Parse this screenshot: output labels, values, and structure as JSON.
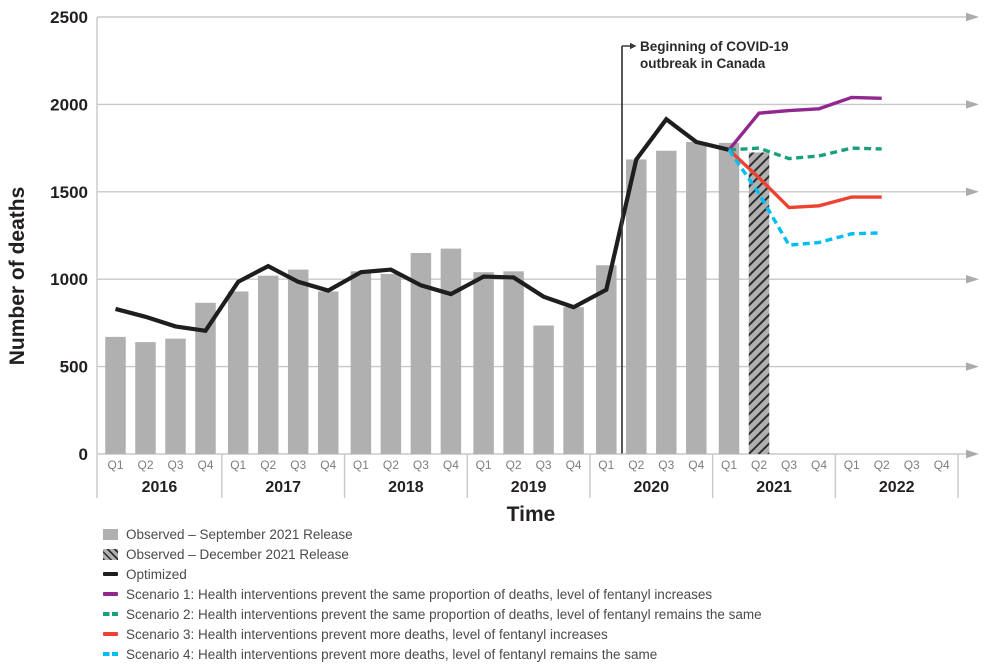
{
  "chart_data": {
    "type": "bar+line",
    "title": "",
    "xlabel": "Time",
    "ylabel": "Number of deaths",
    "ylim": [
      0,
      2500
    ],
    "y_ticks": [
      0,
      500,
      1000,
      1500,
      2000,
      2500
    ],
    "years": [
      "2016",
      "2017",
      "2018",
      "2019",
      "2020",
      "2021",
      "2022"
    ],
    "quarters": [
      "Q1",
      "Q2",
      "Q3",
      "Q4"
    ],
    "grid": "on",
    "legend_position": "bottom-left",
    "annotation": {
      "line1": "Beginning of COVID-19",
      "line2": "outbreak in Canada",
      "at": "between 2020 Q1 and 2020 Q2"
    },
    "series": [
      {
        "id": "observed-sep-2021",
        "name": "Observed – September 2021 Release",
        "kind": "bar",
        "hatched": false,
        "color": "#b0b0b0",
        "start_index": 0,
        "values": [
          670,
          640,
          660,
          865,
          930,
          1020,
          1055,
          930,
          1045,
          1030,
          1150,
          1175,
          1040,
          1045,
          735,
          840,
          1080,
          1685,
          1735,
          1785,
          1780
        ]
      },
      {
        "id": "observed-dec-2021",
        "name": "Observed – December 2021 Release",
        "kind": "bar",
        "hatched": true,
        "color": "#b0b0b0",
        "hatch_color": "#2e2e2e",
        "start_index": 21,
        "values": [
          1725
        ]
      },
      {
        "id": "optimized",
        "name": "Optimized",
        "kind": "line",
        "dash": "solid",
        "color": "#1e1e1e",
        "width": 4.2,
        "start_index": 0,
        "values": [
          830,
          785,
          730,
          705,
          985,
          1075,
          985,
          935,
          1040,
          1055,
          965,
          915,
          1015,
          1010,
          900,
          840,
          940,
          1685,
          1915,
          1785,
          1740
        ]
      },
      {
        "id": "scenario-1",
        "name": "Scenario 1: Health interventions prevent the same proportion of deaths, level of fentanyl increases",
        "kind": "line",
        "dash": "solid",
        "color": "#92278f",
        "width": 3.4,
        "start_index": 20,
        "values": [
          1740,
          1950,
          1965,
          1975,
          2040,
          2035
        ]
      },
      {
        "id": "scenario-2",
        "name": "Scenario 2: Health interventions prevent the same proportion of deaths, level of fentanyl remains the same",
        "kind": "line",
        "dash": "dashed",
        "color": "#1ba07d",
        "width": 3.4,
        "start_index": 20,
        "values": [
          1740,
          1750,
          1690,
          1705,
          1750,
          1745
        ]
      },
      {
        "id": "scenario-3",
        "name": "Scenario 3: Health interventions prevent more deaths, level of fentanyl increases",
        "kind": "line",
        "dash": "solid",
        "color": "#ee4130",
        "width": 3.4,
        "start_index": 20,
        "values": [
          1740,
          1580,
          1410,
          1420,
          1470,
          1470
        ]
      },
      {
        "id": "scenario-4",
        "name": "Scenario 4: Health interventions prevent more deaths, level of fentanyl remains the same",
        "kind": "line",
        "dash": "dashed",
        "color": "#00bdf2",
        "width": 3.4,
        "start_index": 20,
        "values": [
          1740,
          1490,
          1195,
          1210,
          1260,
          1265
        ]
      }
    ],
    "colors": {
      "gridline": "#c8c8c8",
      "grid_arrow": "#ababab",
      "quarter_label": "#7d7d7d",
      "year_label": "#231f20",
      "annotation_line": "#3a3a3a"
    }
  },
  "legend": {
    "items": [
      {
        "id": "observed-sep-2021",
        "swatch": "bar",
        "color": "#b0b0b0",
        "label": "Observed – September 2021 Release"
      },
      {
        "id": "observed-dec-2021",
        "swatch": "bar-hatched",
        "color": "#b0b0b0",
        "label": "Observed – December 2021 Release"
      },
      {
        "id": "optimized",
        "swatch": "line",
        "color": "#1e1e1e",
        "label": "Optimized"
      },
      {
        "id": "scenario-1",
        "swatch": "line",
        "color": "#92278f",
        "label": "Scenario 1: Health interventions prevent the same proportion of deaths, level of fentanyl increases"
      },
      {
        "id": "scenario-2",
        "swatch": "line-dashed",
        "color": "#1ba07d",
        "label": "Scenario 2: Health interventions prevent the same proportion of deaths, level of fentanyl remains the same"
      },
      {
        "id": "scenario-3",
        "swatch": "line",
        "color": "#ee4130",
        "label": "Scenario 3: Health interventions prevent more deaths, level of fentanyl increases"
      },
      {
        "id": "scenario-4",
        "swatch": "line-dashed",
        "color": "#00bdf2",
        "label": "Scenario 4: Health interventions prevent more deaths, level of fentanyl remains the same"
      }
    ]
  }
}
